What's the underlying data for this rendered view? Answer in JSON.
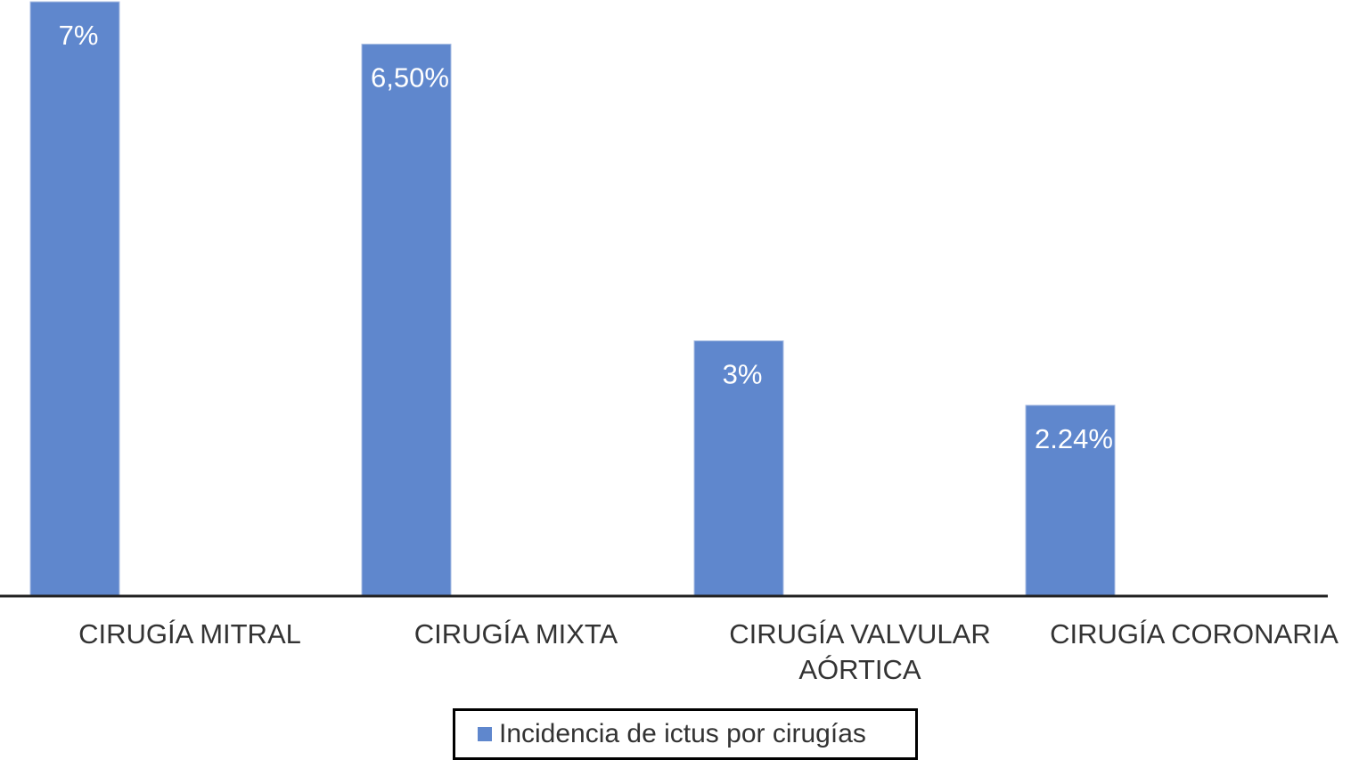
{
  "chart_data": {
    "type": "bar",
    "title": "",
    "xlabel": "",
    "ylabel": "",
    "categories": [
      "CIRUGÍA MITRAL",
      "CIRUGÍA MIXTA",
      "CIRUGÍA VALVULAR AÓRTICA",
      "CIRUGÍA CORONARIA"
    ],
    "category_lines": [
      [
        "CIRUGÍA MITRAL"
      ],
      [
        "CIRUGÍA MIXTA"
      ],
      [
        "CIRUGÍA VALVULAR",
        "AÓRTICA"
      ],
      [
        "CIRUGÍA CORONARIA"
      ]
    ],
    "series": [
      {
        "name": "Incidencia de ictus por cirugías",
        "values": [
          7,
          6.5,
          3,
          2.24
        ],
        "data_labels": [
          "7%",
          "6,50%",
          "3%",
          "2.24%"
        ],
        "color": "#5f87cd"
      }
    ],
    "ylim": [
      0,
      7
    ],
    "y_axis_visible": false,
    "grid": false,
    "legend": "bottom"
  }
}
